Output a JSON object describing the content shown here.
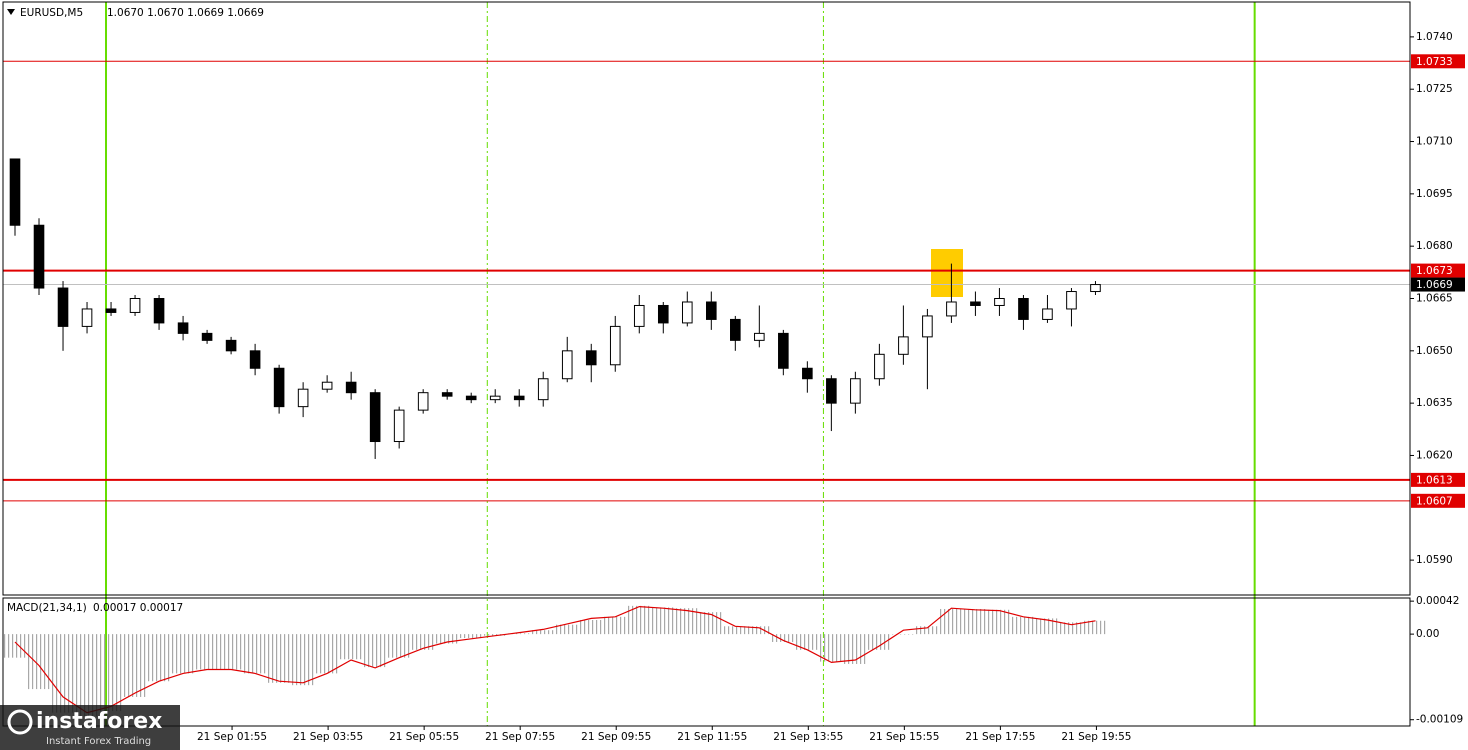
{
  "chart_data": [
    {
      "type": "candlestick",
      "title": "EURUSD,M5",
      "header_values": "1.0670 1.0670 1.0669 1.0669",
      "open": [
        1.0705,
        1.0686,
        1.0668,
        1.0657,
        1.0662,
        1.0661,
        1.0665,
        1.0658,
        1.0655,
        1.0653,
        1.065,
        1.0645,
        1.0634,
        1.0639,
        1.0641,
        1.0638,
        1.0624,
        1.0633,
        1.0638,
        1.0637,
        1.0636,
        1.0637,
        1.0636,
        1.0642,
        1.065,
        1.0646,
        1.0657,
        1.0663,
        1.0658,
        1.0664,
        1.0659,
        1.0653,
        1.0655,
        1.0645,
        1.0642,
        1.0635,
        1.0642,
        1.0649,
        1.0654,
        1.066,
        1.0664,
        1.0663,
        1.0665,
        1.0659,
        1.0662,
        1.0667
      ],
      "high": [
        1.0705,
        1.0688,
        1.067,
        1.0664,
        1.0664,
        1.0666,
        1.0666,
        1.066,
        1.0656,
        1.0654,
        1.0652,
        1.0646,
        1.0641,
        1.0643,
        1.0644,
        1.0639,
        1.0634,
        1.0639,
        1.0639,
        1.0638,
        1.0639,
        1.0639,
        1.0644,
        1.0654,
        1.0652,
        1.066,
        1.0666,
        1.0664,
        1.0667,
        1.0667,
        1.066,
        1.0663,
        1.0656,
        1.0647,
        1.0643,
        1.0644,
        1.0652,
        1.0663,
        1.0662,
        1.0675,
        1.0667,
        1.0668,
        1.0666,
        1.0666,
        1.0668,
        1.067
      ],
      "low": [
        1.0683,
        1.0666,
        1.065,
        1.0655,
        1.066,
        1.066,
        1.0656,
        1.0653,
        1.0652,
        1.0649,
        1.0643,
        1.0632,
        1.0631,
        1.0638,
        1.0636,
        1.0619,
        1.0622,
        1.0632,
        1.0636,
        1.0635,
        1.0635,
        1.0634,
        1.0634,
        1.0641,
        1.0641,
        1.0644,
        1.0655,
        1.0655,
        1.0657,
        1.0656,
        1.065,
        1.0651,
        1.0643,
        1.0638,
        1.0627,
        1.0632,
        1.064,
        1.0646,
        1.0639,
        1.0658,
        1.066,
        1.066,
        1.0656,
        1.0658,
        1.0657,
        1.0666
      ],
      "close": [
        1.0686,
        1.0668,
        1.0657,
        1.0662,
        1.0661,
        1.0665,
        1.0658,
        1.0655,
        1.0653,
        1.065,
        1.0645,
        1.0634,
        1.0639,
        1.0641,
        1.0638,
        1.0624,
        1.0633,
        1.0638,
        1.0637,
        1.0636,
        1.0637,
        1.0636,
        1.0642,
        1.065,
        1.0646,
        1.0657,
        1.0663,
        1.0658,
        1.0664,
        1.0659,
        1.0653,
        1.0655,
        1.0645,
        1.0642,
        1.0635,
        1.0642,
        1.0649,
        1.0654,
        1.066,
        1.0664,
        1.0663,
        1.0665,
        1.0659,
        1.0662,
        1.0667,
        1.0669
      ],
      "xlim": [
        0,
        58.6
      ],
      "ylim": [
        1.058,
        1.075
      ],
      "yticks": [
        {
          "value": 1.074,
          "label": "1.0740"
        },
        {
          "value": 1.0725,
          "label": "1.0725"
        },
        {
          "value": 1.071,
          "label": "1.0710"
        },
        {
          "value": 1.0695,
          "label": "1.0695"
        },
        {
          "value": 1.068,
          "label": "1.0680"
        },
        {
          "value": 1.0665,
          "label": "1.0665"
        },
        {
          "value": 1.065,
          "label": "1.0650"
        },
        {
          "value": 1.0635,
          "label": "1.0635"
        },
        {
          "value": 1.062,
          "label": "1.0620"
        },
        {
          "value": 1.059,
          "label": "1.0590"
        }
      ],
      "xticks": [
        {
          "value": 9.54,
          "label": "21 Sep 01:55"
        },
        {
          "value": 13.54,
          "label": "21 Sep 03:55"
        },
        {
          "value": 17.54,
          "label": "21 Sep 05:55"
        },
        {
          "value": 21.54,
          "label": "21 Sep 07:55"
        },
        {
          "value": 25.54,
          "label": "21 Sep 09:55"
        },
        {
          "value": 29.54,
          "label": "21 Sep 11:55"
        },
        {
          "value": 33.54,
          "label": "21 Sep 13:55"
        },
        {
          "value": 37.54,
          "label": "21 Sep 15:55"
        },
        {
          "value": 41.54,
          "label": "21 Sep 17:55"
        },
        {
          "value": 45.54,
          "label": "21 Sep 19:55"
        }
      ],
      "levels": [
        {
          "value": 1.0733,
          "label": "1.0733",
          "color": "#e00000",
          "width": 1
        },
        {
          "value": 1.0673,
          "label": "1.0673",
          "color": "#e00000",
          "width": 2
        },
        {
          "value": 1.0669,
          "label": "1.0669",
          "color": "#c0c0c0",
          "width": 1
        },
        {
          "value": 1.0613,
          "label": "1.0613",
          "color": "#e00000",
          "width": 2
        },
        {
          "value": 1.0607,
          "label": "1.0607",
          "color": "#e00000",
          "width": 1
        }
      ],
      "vlines": [
        {
          "value": 4.29,
          "color": "#66dd00",
          "dashed": false
        },
        {
          "value": 20.17,
          "color": "#66dd00",
          "dashed": true
        },
        {
          "value": 34.17,
          "color": "#66dd00",
          "dashed": true
        },
        {
          "value": 52.13,
          "color": "#66dd00",
          "dashed": false
        }
      ],
      "up_color": "#ffffff",
      "down_color": "#000000"
    },
    {
      "type": "macd",
      "title": "MACD(21,34,1)",
      "header_values": "0.00017 0.00017",
      "histogram": {
        "color": "#a8a8a8",
        "values": [
          -0.0003,
          -0.0007,
          -0.001,
          -0.00105,
          -0.00098,
          -0.0008,
          -0.0006,
          -0.0005,
          -0.00045,
          -0.00045,
          -0.0005,
          -0.00062,
          -0.00065,
          -0.0005,
          -0.00032,
          -0.00042,
          -0.0003,
          -0.0002,
          -0.00012,
          -5e-05,
          -2e-05,
          1e-05,
          5e-05,
          0.00012,
          0.00018,
          0.00022,
          0.00036,
          0.00034,
          0.00033,
          0.00028,
          0.0001,
          0.0001,
          -0.0001,
          -0.0002,
          -0.00035,
          -0.00038,
          -0.0002,
          0,
          0.0001,
          0.00032,
          0.00032,
          0.00031,
          0.00022,
          0.0002,
          0.00015,
          0.00017
        ]
      },
      "signal": {
        "color": "#e00000",
        "values": [
          -0.0001,
          -0.0004,
          -0.0008,
          -0.001,
          -0.00092,
          -0.00075,
          -0.0006,
          -0.0005,
          -0.00045,
          -0.00045,
          -0.0005,
          -0.0006,
          -0.00062,
          -0.0005,
          -0.00033,
          -0.00043,
          -0.0003,
          -0.00018,
          -0.0001,
          -6e-05,
          -2e-05,
          2e-05,
          6e-05,
          0.00013,
          0.0002,
          0.00022,
          0.00035,
          0.00033,
          0.0003,
          0.00025,
          0.0001,
          8e-05,
          -8e-05,
          -0.0002,
          -0.00036,
          -0.00033,
          -0.00015,
          5e-05,
          8e-05,
          0.00033,
          0.00031,
          0.0003,
          0.00022,
          0.00018,
          0.00012,
          0.00017
        ]
      },
      "ylim": [
        -0.00117,
        0.00046
      ],
      "yticks": [
        0.00042,
        {
          "value": 0,
          "label": "0.00"
        },
        -0.00109
      ]
    }
  ],
  "watermark": {
    "brand": "instaforex",
    "tagline": "Instant Forex Trading"
  }
}
